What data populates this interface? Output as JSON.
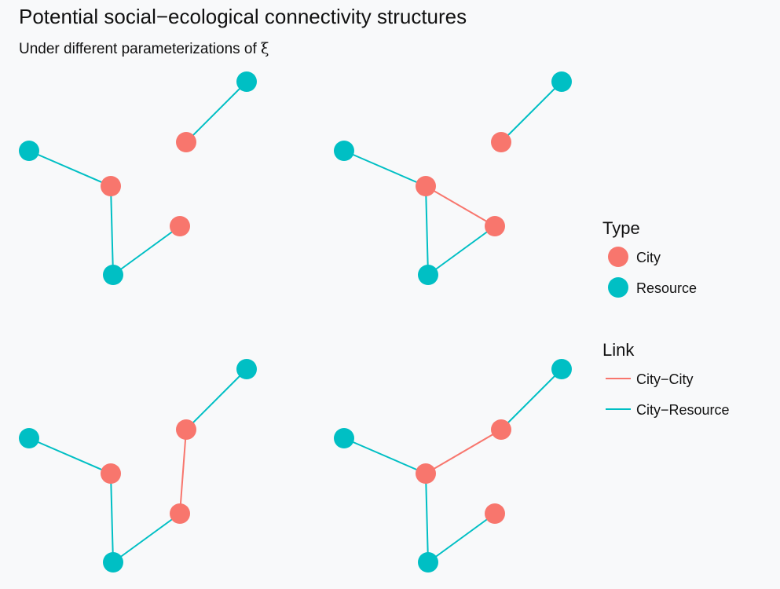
{
  "title": "Potential social−ecological connectivity structures",
  "subtitle": {
    "text": "Under different parameterizations of ",
    "symbol": "ξ"
  },
  "colors": {
    "city": "#F8766D",
    "resource": "#00BFC4",
    "city_city_link": "#F8766D",
    "city_resource_link": "#00BFC4",
    "background": "#f8f9fa"
  },
  "legend": {
    "type": {
      "title": "Type",
      "items": [
        {
          "label": "City",
          "key": "city"
        },
        {
          "label": "Resource",
          "key": "resource"
        }
      ]
    },
    "link": {
      "title": "Link",
      "items": [
        {
          "label": "City−City",
          "key": "city_city_link"
        },
        {
          "label": "City−Resource",
          "key": "city_resource_link"
        }
      ]
    }
  },
  "diagram": {
    "nodes": [
      {
        "id": "R1",
        "type": "resource"
      },
      {
        "id": "C1",
        "type": "city"
      },
      {
        "id": "R2",
        "type": "resource"
      },
      {
        "id": "C2",
        "type": "city"
      },
      {
        "id": "C3",
        "type": "city"
      },
      {
        "id": "R3",
        "type": "resource"
      }
    ],
    "panels": [
      {
        "edges": [
          {
            "from": "C1",
            "to": "R1",
            "kind": "city_resource_link"
          },
          {
            "from": "C2",
            "to": "R2",
            "kind": "city_resource_link"
          },
          {
            "from": "C2",
            "to": "R3",
            "kind": "city_resource_link"
          },
          {
            "from": "C3",
            "to": "R3",
            "kind": "city_resource_link"
          }
        ]
      },
      {
        "edges": [
          {
            "from": "C1",
            "to": "R1",
            "kind": "city_resource_link"
          },
          {
            "from": "C2",
            "to": "R2",
            "kind": "city_resource_link"
          },
          {
            "from": "C2",
            "to": "R3",
            "kind": "city_resource_link"
          },
          {
            "from": "C3",
            "to": "R3",
            "kind": "city_resource_link"
          },
          {
            "from": "C2",
            "to": "C3",
            "kind": "city_city_link"
          }
        ]
      },
      {
        "edges": [
          {
            "from": "C1",
            "to": "R1",
            "kind": "city_resource_link"
          },
          {
            "from": "C2",
            "to": "R2",
            "kind": "city_resource_link"
          },
          {
            "from": "C2",
            "to": "R3",
            "kind": "city_resource_link"
          },
          {
            "from": "C3",
            "to": "R3",
            "kind": "city_resource_link"
          },
          {
            "from": "C1",
            "to": "C3",
            "kind": "city_city_link"
          }
        ]
      },
      {
        "edges": [
          {
            "from": "C1",
            "to": "R1",
            "kind": "city_resource_link"
          },
          {
            "from": "C2",
            "to": "R2",
            "kind": "city_resource_link"
          },
          {
            "from": "C2",
            "to": "R3",
            "kind": "city_resource_link"
          },
          {
            "from": "C3",
            "to": "R3",
            "kind": "city_resource_link"
          },
          {
            "from": "C1",
            "to": "C2",
            "kind": "city_city_link"
          }
        ]
      }
    ]
  }
}
